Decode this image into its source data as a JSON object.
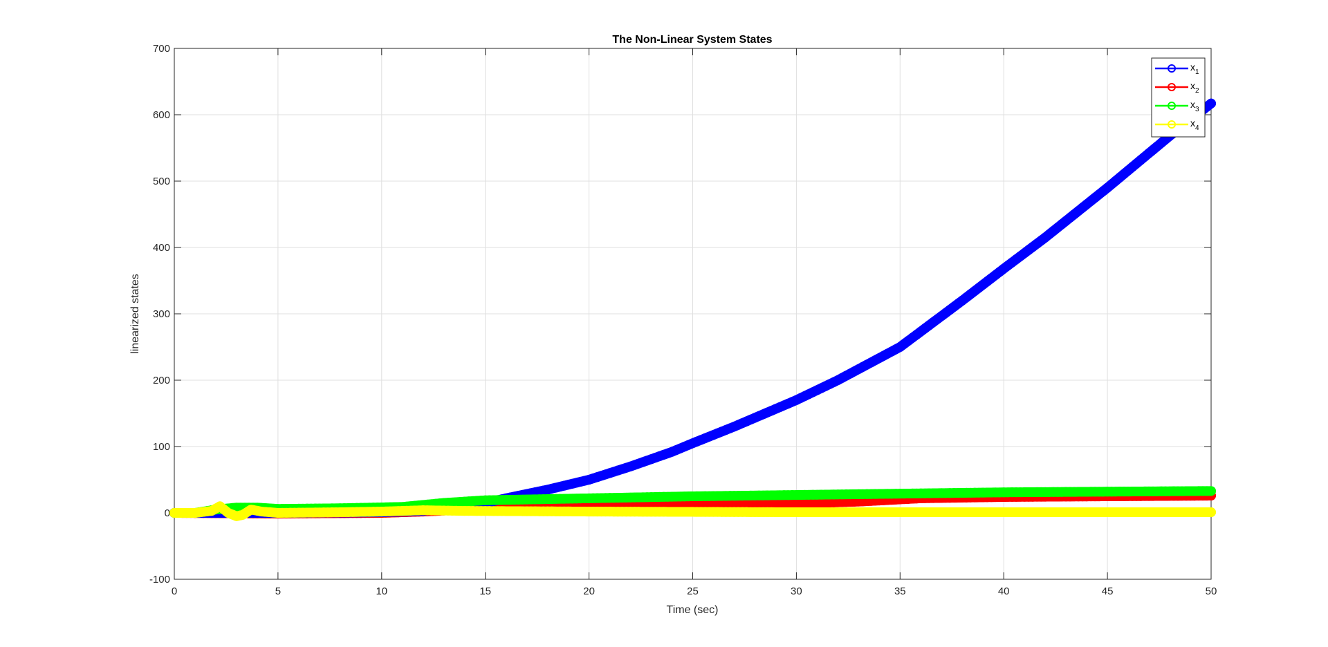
{
  "chart_data": {
    "type": "line",
    "title": "The Non-Linear System States",
    "xlabel": "Time (sec)",
    "ylabel": "linearized states",
    "xlim": [
      0,
      50
    ],
    "ylim": [
      -100,
      700
    ],
    "xticks": [
      0,
      5,
      10,
      15,
      20,
      25,
      30,
      35,
      40,
      45,
      50
    ],
    "yticks": [
      -100,
      0,
      100,
      200,
      300,
      400,
      500,
      600,
      700
    ],
    "grid": true,
    "legend_position": "top-right",
    "series": [
      {
        "name": "x1",
        "label_base": "x",
        "label_sub": "1",
        "color": "#0000ff",
        "points": [
          [
            0,
            0
          ],
          [
            5,
            0
          ],
          [
            10,
            1
          ],
          [
            12,
            3
          ],
          [
            14,
            10
          ],
          [
            15,
            15
          ],
          [
            16,
            22
          ],
          [
            18,
            35
          ],
          [
            20,
            50
          ],
          [
            22,
            70
          ],
          [
            24,
            92
          ],
          [
            25,
            105
          ],
          [
            27,
            130
          ],
          [
            30,
            170
          ],
          [
            32,
            200
          ],
          [
            35,
            250
          ],
          [
            38,
            320
          ],
          [
            40,
            368
          ],
          [
            42,
            415
          ],
          [
            45,
            490
          ],
          [
            48,
            568
          ],
          [
            50,
            617
          ]
        ]
      },
      {
        "name": "x2",
        "label_base": "x",
        "label_sub": "2",
        "color": "#ff0000",
        "points": [
          [
            0,
            0
          ],
          [
            5,
            -1
          ],
          [
            10,
            0
          ],
          [
            12,
            2
          ],
          [
            14,
            5
          ],
          [
            16,
            8
          ],
          [
            20,
            10
          ],
          [
            25,
            12
          ],
          [
            30,
            14
          ],
          [
            33,
            17
          ],
          [
            36,
            22
          ],
          [
            40,
            24
          ],
          [
            45,
            25
          ],
          [
            50,
            26
          ]
        ]
      },
      {
        "name": "x3",
        "label_base": "x",
        "label_sub": "3",
        "color": "#00ff00",
        "points": [
          [
            0,
            0
          ],
          [
            1,
            0
          ],
          [
            2,
            5
          ],
          [
            3,
            8
          ],
          [
            4,
            8
          ],
          [
            5,
            6
          ],
          [
            8,
            7
          ],
          [
            11,
            9
          ],
          [
            13,
            15
          ],
          [
            15,
            19
          ],
          [
            20,
            22
          ],
          [
            25,
            25
          ],
          [
            30,
            27
          ],
          [
            35,
            29
          ],
          [
            40,
            31
          ],
          [
            45,
            32
          ],
          [
            50,
            33
          ]
        ]
      },
      {
        "name": "x4",
        "label_base": "x",
        "label_sub": "4",
        "color": "#ffff00",
        "points": [
          [
            0,
            0
          ],
          [
            1,
            0
          ],
          [
            1.8,
            3
          ],
          [
            2.2,
            10
          ],
          [
            2.6,
            0
          ],
          [
            3,
            -5
          ],
          [
            3.3,
            -3
          ],
          [
            3.7,
            5
          ],
          [
            4.2,
            2
          ],
          [
            5,
            0
          ],
          [
            8,
            1
          ],
          [
            10,
            2
          ],
          [
            12,
            4
          ],
          [
            14,
            3
          ],
          [
            20,
            2
          ],
          [
            30,
            1
          ],
          [
            40,
            1
          ],
          [
            50,
            1
          ]
        ]
      }
    ]
  }
}
